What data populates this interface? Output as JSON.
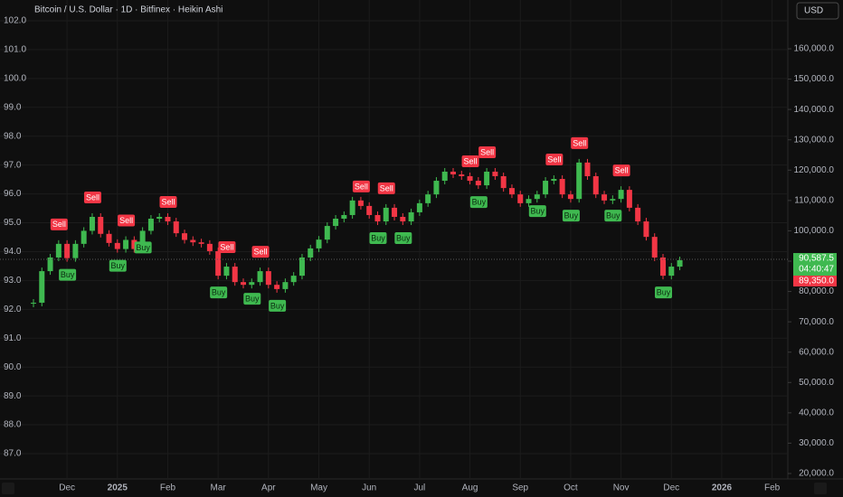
{
  "chart_data": {
    "type": "candlestick",
    "title": "Bitcoin / U.S. Dollar · 1D · Bitfinex · Heikin Ashi",
    "currency": "USD",
    "categories": [
      null,
      null,
      null,
      null,
      "Dec",
      null,
      null,
      null,
      null,
      null,
      "2025",
      null,
      null,
      null,
      null,
      null,
      "Feb",
      null,
      null,
      null,
      null,
      null,
      "Mar",
      null,
      null,
      null,
      null,
      null,
      "Apr",
      null,
      null,
      null,
      null,
      null,
      "May",
      null,
      null,
      null,
      null,
      null,
      "Jun",
      null,
      null,
      null,
      null,
      null,
      "Jul",
      null,
      null,
      null,
      null,
      null,
      "Aug",
      null,
      null,
      null,
      null,
      null,
      "Sep",
      null,
      null,
      null,
      null,
      null,
      "Oct",
      null,
      null,
      null,
      null,
      null,
      "Nov",
      null,
      null,
      null,
      null,
      null,
      "Dec",
      null,
      null,
      null,
      null,
      null,
      "2026",
      null,
      null,
      null,
      null,
      null,
      "Feb",
      null,
      null,
      null,
      null
    ],
    "values": [
      76300,
      86700,
      91200,
      95700,
      91000,
      95700,
      100000,
      104600,
      99000,
      96000,
      94000,
      97000,
      94000,
      100000,
      104000,
      104600,
      103100,
      99200,
      97000,
      96200,
      95700,
      93300,
      85200,
      88200,
      83100,
      82200,
      83100,
      86700,
      82200,
      80800,
      83100,
      85200,
      91200,
      94200,
      97100,
      101600,
      104000,
      105200,
      110000,
      108200,
      105200,
      103100,
      107600,
      104600,
      103100,
      106100,
      109100,
      112000,
      116500,
      119500,
      118600,
      118000,
      116500,
      115000,
      119500,
      118000,
      114100,
      112000,
      109100,
      110500,
      112000,
      116500,
      117100,
      112000,
      110500,
      122500,
      118000,
      112000,
      110000,
      110500,
      113500,
      107600,
      103100,
      98000,
      91200,
      85200,
      88200,
      90300,
      null,
      null,
      null,
      null,
      null,
      null,
      null,
      null,
      null,
      null,
      null,
      null,
      null,
      null,
      null
    ],
    "signals": [
      null,
      null,
      null,
      "Sell",
      "Buy",
      null,
      null,
      "Sell",
      null,
      null,
      "Buy",
      "Sell",
      null,
      "Buy",
      null,
      null,
      "Sell",
      null,
      null,
      null,
      null,
      null,
      "Buy",
      "Sell",
      null,
      null,
      "Buy",
      "Sell",
      null,
      "Buy",
      null,
      null,
      null,
      null,
      null,
      null,
      null,
      null,
      null,
      "Sell",
      null,
      "Buy",
      "Sell",
      null,
      "Buy",
      null,
      null,
      null,
      null,
      null,
      null,
      null,
      "Sell",
      "Buy",
      "Sell",
      null,
      null,
      null,
      null,
      null,
      "Buy",
      null,
      "Sell",
      null,
      "Buy",
      "Sell",
      null,
      null,
      null,
      "Buy",
      "Sell",
      null,
      null,
      null,
      null,
      "Buy",
      null,
      null,
      null,
      null,
      null,
      null,
      null,
      null,
      null,
      null,
      null,
      null,
      null,
      null,
      null
    ],
    "axis": "y2",
    "up_color": "#3fb950",
    "down_color": "#f23645",
    "ylim": [
      86.123,
      102.219
    ],
    "yticks": [
      {
        "value": 87,
        "label": "87.0"
      },
      {
        "value": 88,
        "label": "88.0"
      },
      {
        "value": 89,
        "label": "89.0"
      },
      {
        "value": 90,
        "label": "90.0"
      },
      {
        "value": 91,
        "label": "91.0"
      },
      {
        "value": 92,
        "label": "92.0"
      },
      {
        "value": 93,
        "label": "93.0"
      },
      {
        "value": 94,
        "label": "94.0"
      },
      {
        "value": 95,
        "label": "95.0"
      },
      {
        "value": 96,
        "label": "96.0"
      },
      {
        "value": 97,
        "label": "97.0"
      },
      {
        "value": 98,
        "label": "98.0"
      },
      {
        "value": 99,
        "label": "99.0"
      },
      {
        "value": 100,
        "label": "100.0"
      },
      {
        "value": 101,
        "label": "101.0"
      },
      {
        "value": 102,
        "label": "102.0"
      }
    ],
    "y2lim": [
      18213,
      171319
    ],
    "y2ticks": [
      {
        "value": 20000,
        "label": "20,000.0"
      },
      {
        "value": 30000,
        "label": "30,000.0"
      },
      {
        "value": 40000,
        "label": "40,000.0"
      },
      {
        "value": 50000,
        "label": "50,000.0"
      },
      {
        "value": 60000,
        "label": "60,000.0"
      },
      {
        "value": 70000,
        "label": "70,000.0"
      },
      {
        "value": 80000,
        "label": "80,000.0"
      },
      {
        "value": 90000,
        "label": "90,000.0"
      },
      {
        "value": 100000,
        "label": "100,000.0"
      },
      {
        "value": 110000,
        "label": "110,000.0"
      },
      {
        "value": 120000,
        "label": "120,000.0"
      },
      {
        "value": 130000,
        "label": "130,000.0"
      },
      {
        "value": 140000,
        "label": "140,000.0"
      },
      {
        "value": 150000,
        "label": "150,000.0"
      },
      {
        "value": 160000,
        "label": "160,000.0"
      }
    ],
    "grid": true,
    "last_price": {
      "value": 90587.5,
      "label": "90,587.5"
    },
    "countdown": "04:40:47",
    "prev_close": {
      "value": 89350,
      "label": "89,350.0"
    }
  }
}
